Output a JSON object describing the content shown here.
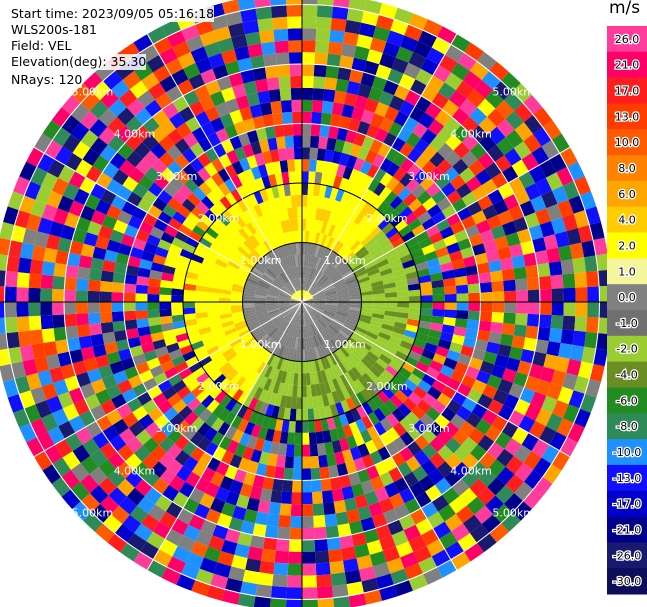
{
  "header": {
    "start_time": "Start time: 2023/09/05 05:16:18",
    "instrument": "WLS200s-181",
    "field": "Field: VEL",
    "elevation": "Elevation(deg): 35.30",
    "nrays": "NRays: 120"
  },
  "colorbar": {
    "unit": "m/s",
    "labels": [
      "26.0",
      "21.0",
      "17.0",
      "13.0",
      "10.0",
      "8.0",
      "6.0",
      "4.0",
      "2.0",
      "1.0",
      "0.0",
      "-1.0",
      "-2.0",
      "-4.0",
      "-6.0",
      "-8.0",
      "-10.0",
      "-13.0",
      "-17.0",
      "-21.0",
      "-26.0",
      "-30.0"
    ],
    "colors": [
      "#ff3c9c",
      "#ff0066",
      "#ff1e1e",
      "#ff3c00",
      "#ff5a00",
      "#ff8200",
      "#ffa500",
      "#ffcc00",
      "#ffff00",
      "#f5f59b",
      "#808080",
      "#707070",
      "#9acd32",
      "#6b8e23",
      "#228b22",
      "#2e8b57",
      "#1e90ff",
      "#1010ff",
      "#0000cd",
      "#00008b",
      "#191970",
      "#0d0d5a"
    ]
  },
  "chart_data": {
    "type": "heatmap",
    "projection": "polar (PPI)",
    "field": "VEL",
    "unit": "m/s",
    "nrays": 120,
    "range_rings_km": [
      1.0,
      2.0,
      3.0,
      4.0,
      5.0
    ],
    "ring_labels": [
      "1.00km",
      "2.00km",
      "3.00km",
      "4.00km",
      "5.00km"
    ],
    "max_range_km": 5.2,
    "value_scale": [
      -30.0,
      26.0
    ],
    "regions": [
      {
        "range_km": [
          0,
          1.1
        ],
        "velocity_ms": 0.0
      },
      {
        "range_km": [
          1.1,
          2.1
        ],
        "sector": "north-west",
        "velocity_ms": 2.0
      },
      {
        "range_km": [
          1.1,
          2.1
        ],
        "sector": "south-east",
        "velocity_ms": -2.0
      },
      {
        "range_km": [
          2.1,
          5.2
        ],
        "velocity_ms": "noise (all bins)"
      }
    ]
  }
}
